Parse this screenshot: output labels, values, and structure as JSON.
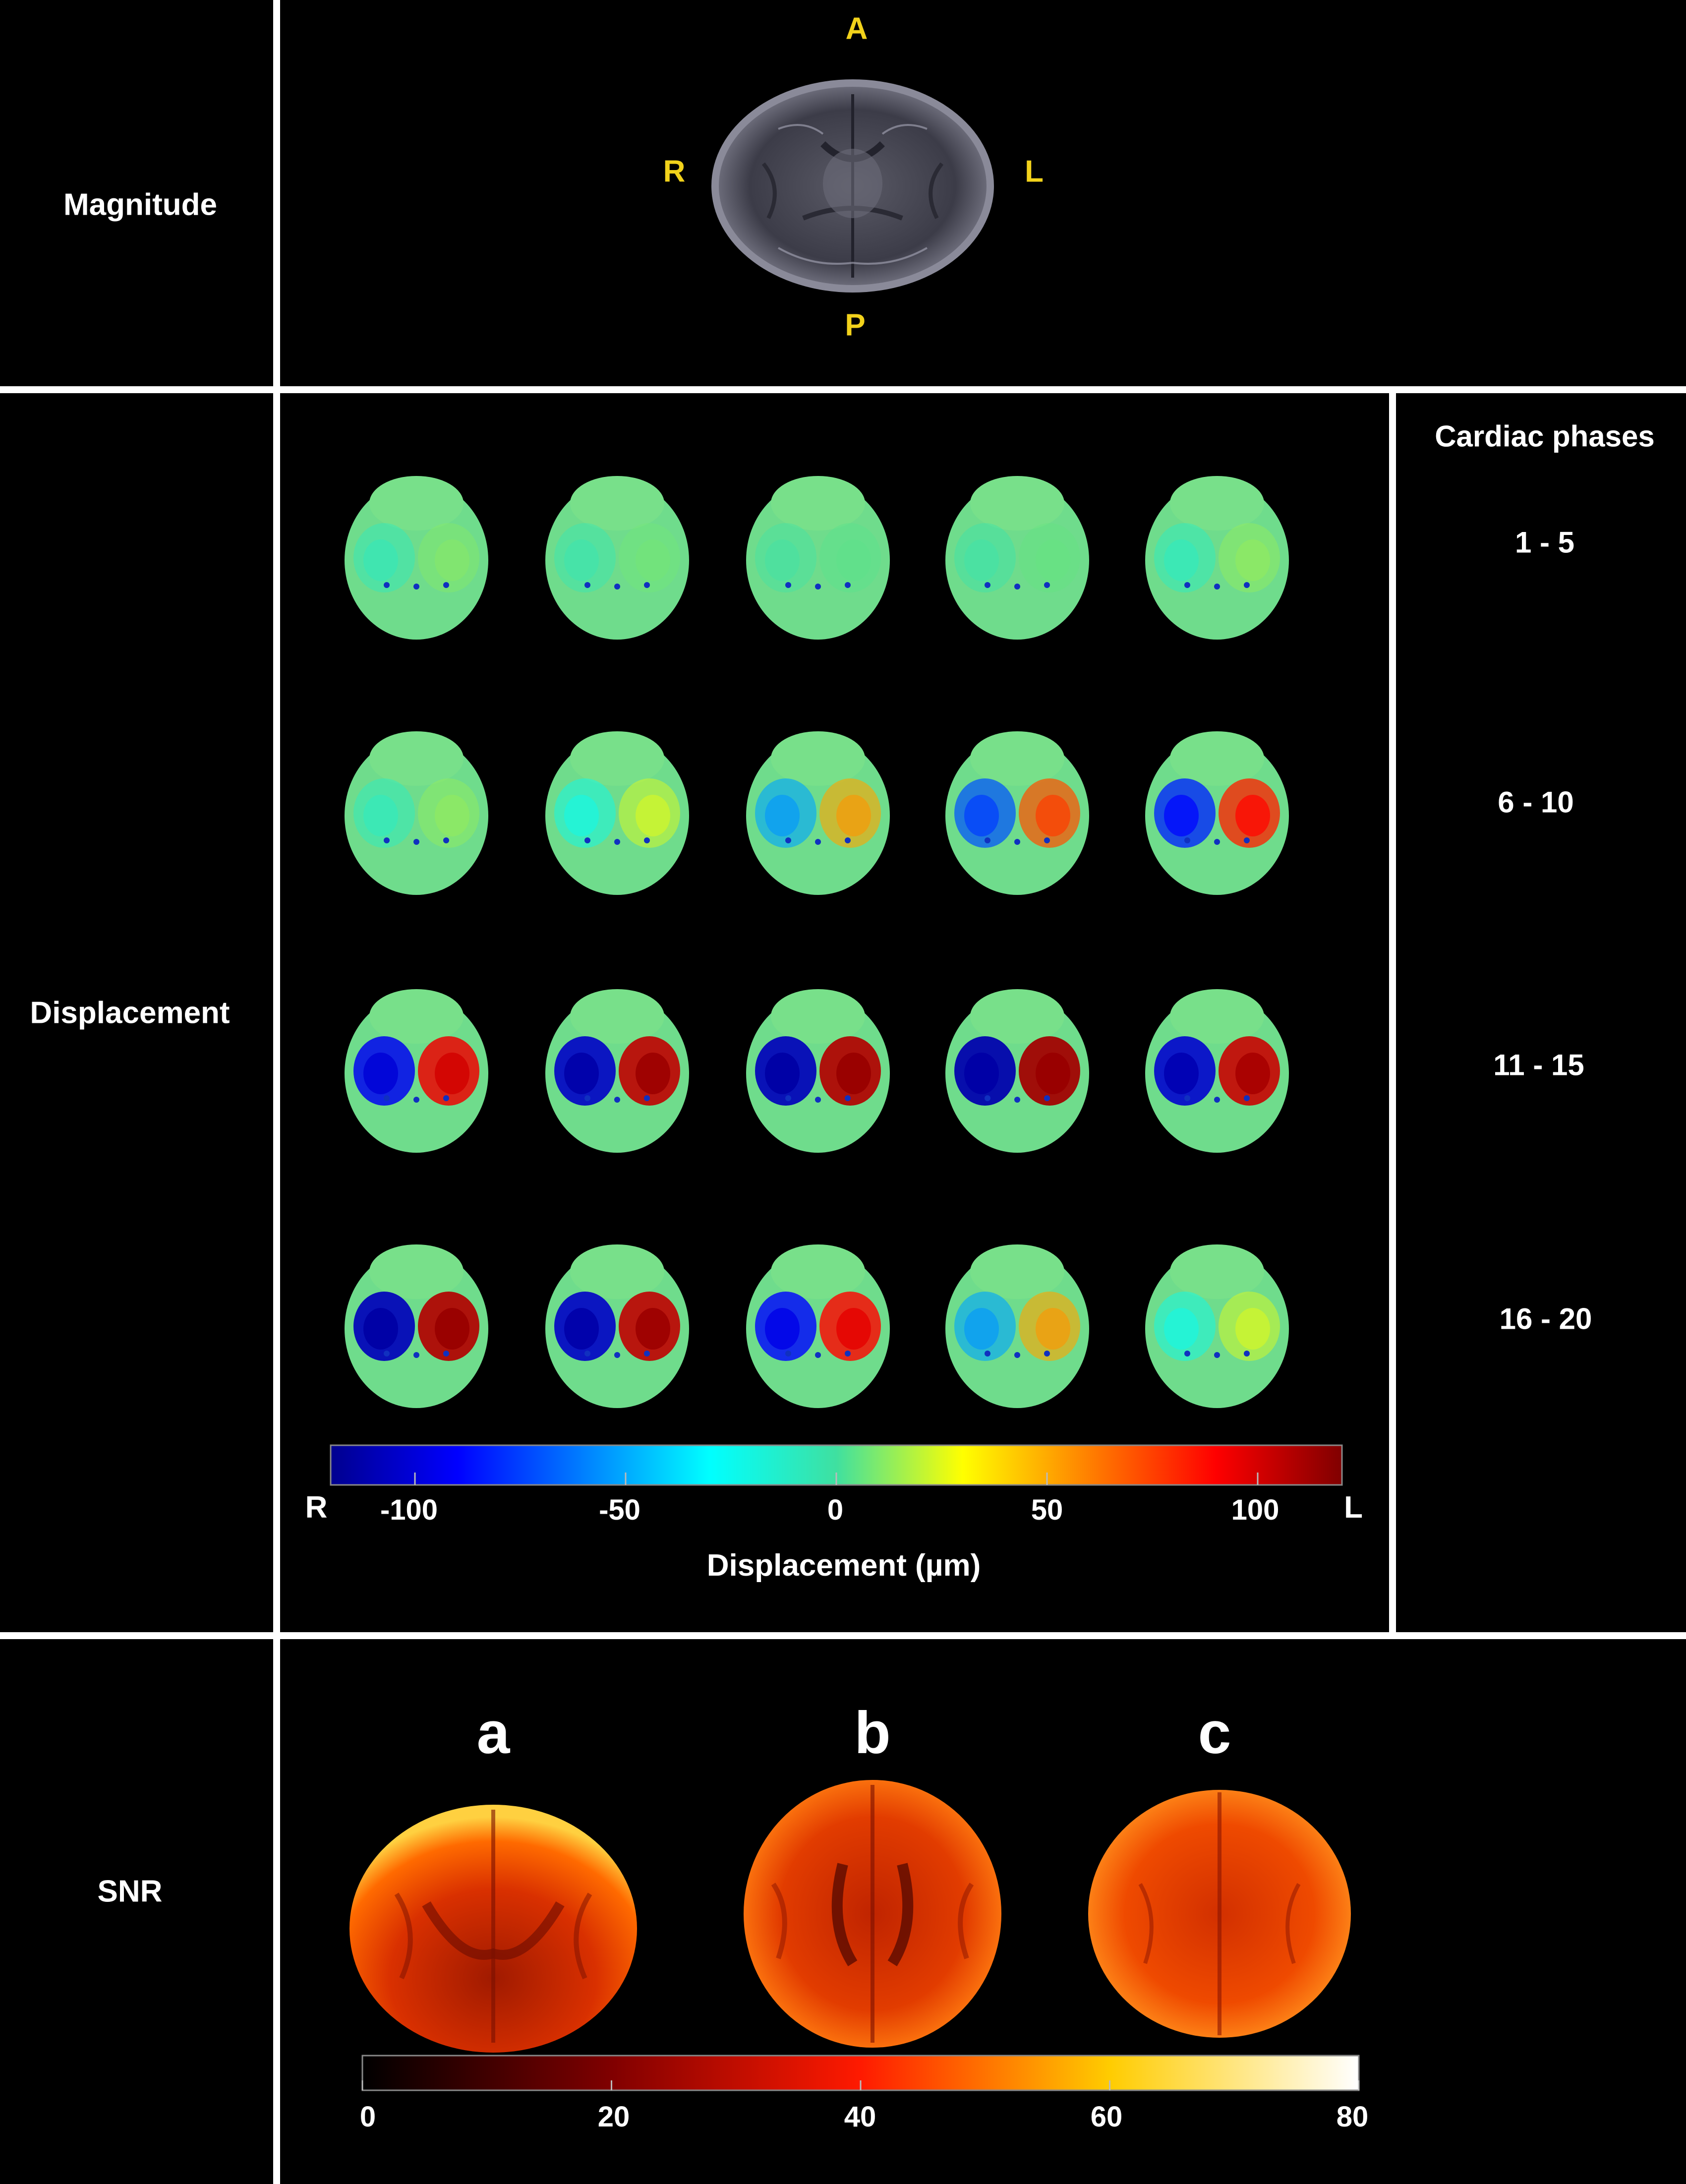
{
  "rows": {
    "magnitude": "Magnitude",
    "displacement": "Displacement",
    "snr": "SNR"
  },
  "orientation": {
    "anterior": "A",
    "posterior": "P",
    "right": "R",
    "left": "L"
  },
  "phases": {
    "header": "Cardiac phases",
    "groups": [
      "1 - 5",
      "6  - 10",
      "11 - 15",
      "16  - 20"
    ]
  },
  "displacement_colorbar": {
    "title": "Displacement (µm)",
    "left_end": "R",
    "right_end": "L",
    "ticks": [
      "-100",
      "-50",
      "0",
      "50",
      "100"
    ],
    "colormap": "jet",
    "range": [
      -120,
      120
    ]
  },
  "snr_panels": [
    "a",
    "b",
    "c"
  ],
  "snr_colorbar": {
    "ticks": [
      "0",
      "20",
      "40",
      "60",
      "80"
    ],
    "colormap": "hot",
    "range": [
      0,
      80
    ]
  },
  "displacement_magnitude_by_phase": [
    0.1,
    0.07,
    0.03,
    0.05,
    0.12,
    0.12,
    0.22,
    0.45,
    0.62,
    0.72,
    0.82,
    0.92,
    0.95,
    0.98,
    0.9,
    0.95,
    0.92,
    0.78,
    0.45,
    0.22
  ]
}
